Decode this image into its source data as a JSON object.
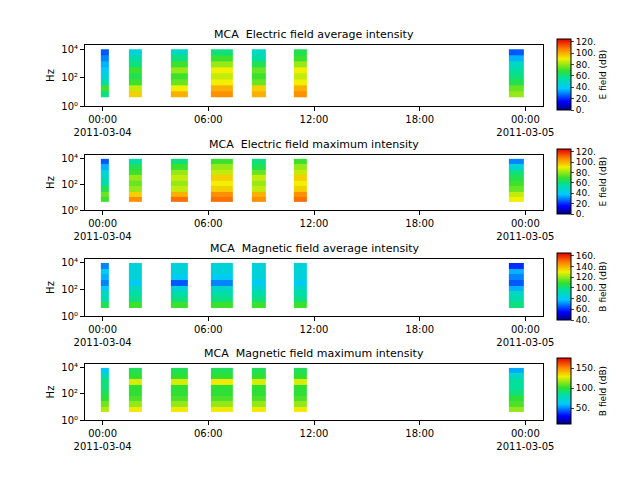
{
  "chart_data": [
    {
      "type": "heatmap",
      "title": "MCA  Electric field average intensity",
      "ylabel": "Hz",
      "log": "y",
      "xlim": [
        "2011-03-03 23:00",
        "2011-03-05 01:00"
      ],
      "xticks": [
        {
          "value": "2011-03-04 00:00",
          "label": "00:00\n2011-03-04"
        },
        {
          "value": "2011-03-04 06:00",
          "label": "06:00"
        },
        {
          "value": "2011-03-04 12:00",
          "label": "12:00"
        },
        {
          "value": "2011-03-04 18:00",
          "label": "18:00"
        },
        {
          "value": "2011-03-05 00:00",
          "label": "00:00\n2011-03-05"
        }
      ],
      "ylim": [
        1,
        20000
      ],
      "yticks": [
        {
          "value": 1,
          "label": "10⁰"
        },
        {
          "value": 100,
          "label": "10²"
        },
        {
          "value": 10000,
          "label": "10⁴"
        }
      ],
      "x_bins": [
        "2011-03-03 23:54",
        "2011-03-04 00:20",
        "2011-03-04 01:28",
        "2011-03-04 02:13",
        "2011-03-04 03:54",
        "2011-03-04 04:52",
        "2011-03-04 06:07",
        "2011-03-04 07:22",
        "2011-03-04 08:29",
        "2011-03-04 09:17",
        "2011-03-04 10:52",
        "2011-03-04 11:36",
        "2011-03-04 23:02",
        "2011-03-04 23:56"
      ],
      "y_bins": [
        4,
        11,
        28,
        75,
        200,
        530,
        1400,
        3800,
        10000
      ],
      "z": [
        [
          60,
          null,
          95,
          null,
          100,
          null,
          105,
          null,
          100,
          null,
          105,
          null,
          80
        ],
        [
          70,
          null,
          85,
          null,
          90,
          null,
          100,
          null,
          95,
          null,
          100,
          null,
          75
        ],
        [
          55,
          null,
          70,
          null,
          75,
          null,
          90,
          null,
          75,
          null,
          90,
          null,
          65
        ],
        [
          45,
          null,
          65,
          null,
          70,
          null,
          85,
          null,
          70,
          null,
          85,
          null,
          60
        ],
        [
          40,
          null,
          70,
          null,
          80,
          null,
          90,
          null,
          75,
          null,
          90,
          null,
          55
        ],
        [
          35,
          null,
          60,
          null,
          70,
          null,
          80,
          null,
          65,
          null,
          80,
          null,
          50
        ],
        [
          30,
          null,
          55,
          null,
          60,
          null,
          70,
          null,
          55,
          null,
          70,
          null,
          35
        ],
        [
          25,
          null,
          45,
          null,
          50,
          null,
          60,
          null,
          50,
          null,
          65,
          null,
          25
        ]
      ],
      "colorbar": {
        "label": "E field (dB)",
        "range": [
          0,
          125
        ],
        "ticks": [
          {
            "value": 0,
            "label": "0."
          },
          {
            "value": 20,
            "label": "20."
          },
          {
            "value": 40,
            "label": "40."
          },
          {
            "value": 60,
            "label": "60."
          },
          {
            "value": 80,
            "label": "80."
          },
          {
            "value": 100,
            "label": "100."
          },
          {
            "value": 120,
            "label": "120."
          }
        ]
      }
    },
    {
      "type": "heatmap",
      "title": "MCA  Electric field maximum intensity",
      "ylabel": "Hz",
      "log": "y",
      "xlim": [
        "2011-03-03 23:00",
        "2011-03-05 01:00"
      ],
      "xticks": [
        {
          "value": "2011-03-04 00:00",
          "label": "00:00\n2011-03-04"
        },
        {
          "value": "2011-03-04 06:00",
          "label": "06:00"
        },
        {
          "value": "2011-03-04 12:00",
          "label": "12:00"
        },
        {
          "value": "2011-03-04 18:00",
          "label": "18:00"
        },
        {
          "value": "2011-03-05 00:00",
          "label": "00:00\n2011-03-05"
        }
      ],
      "ylim": [
        1,
        20000
      ],
      "yticks": [
        {
          "value": 1,
          "label": "10⁰"
        },
        {
          "value": 100,
          "label": "10²"
        },
        {
          "value": 10000,
          "label": "10⁴"
        }
      ],
      "x_bins": [
        "2011-03-03 23:54",
        "2011-03-04 00:20",
        "2011-03-04 01:28",
        "2011-03-04 02:13",
        "2011-03-04 03:54",
        "2011-03-04 04:52",
        "2011-03-04 06:07",
        "2011-03-04 07:22",
        "2011-03-04 08:29",
        "2011-03-04 09:17",
        "2011-03-04 10:52",
        "2011-03-04 11:36",
        "2011-03-04 23:02",
        "2011-03-04 23:56"
      ],
      "y_bins": [
        4,
        11,
        28,
        75,
        200,
        530,
        1400,
        3800,
        10000
      ],
      "z": [
        [
          70,
          null,
          105,
          null,
          110,
          null,
          110,
          null,
          105,
          null,
          110,
          null,
          90
        ],
        [
          75,
          null,
          95,
          null,
          100,
          null,
          105,
          null,
          100,
          null,
          105,
          null,
          85
        ],
        [
          65,
          null,
          80,
          null,
          85,
          null,
          95,
          null,
          85,
          null,
          95,
          null,
          75
        ],
        [
          55,
          null,
          75,
          null,
          80,
          null,
          90,
          null,
          80,
          null,
          90,
          null,
          70
        ],
        [
          50,
          null,
          80,
          null,
          85,
          null,
          95,
          null,
          85,
          null,
          95,
          null,
          65
        ],
        [
          45,
          null,
          70,
          null,
          80,
          null,
          85,
          null,
          75,
          null,
          85,
          null,
          60
        ],
        [
          35,
          null,
          65,
          null,
          70,
          null,
          80,
          null,
          65,
          null,
          80,
          null,
          45
        ],
        [
          25,
          null,
          55,
          null,
          60,
          null,
          70,
          null,
          60,
          null,
          70,
          null,
          30
        ]
      ],
      "colorbar": {
        "label": "E field (dB)",
        "range": [
          0,
          125
        ],
        "ticks": [
          {
            "value": 0,
            "label": "0."
          },
          {
            "value": 20,
            "label": "20."
          },
          {
            "value": 40,
            "label": "40."
          },
          {
            "value": 60,
            "label": "60."
          },
          {
            "value": 80,
            "label": "80."
          },
          {
            "value": 100,
            "label": "100."
          },
          {
            "value": 120,
            "label": "120."
          }
        ]
      }
    },
    {
      "type": "heatmap",
      "title": "MCA  Magnetic field average intensity",
      "ylabel": "Hz",
      "log": "y",
      "xlim": [
        "2011-03-03 23:00",
        "2011-03-05 01:00"
      ],
      "xticks": [
        {
          "value": "2011-03-04 00:00",
          "label": "00:00\n2011-03-04"
        },
        {
          "value": "2011-03-04 06:00",
          "label": "06:00"
        },
        {
          "value": "2011-03-04 12:00",
          "label": "12:00"
        },
        {
          "value": "2011-03-04 18:00",
          "label": "18:00"
        },
        {
          "value": "2011-03-05 00:00",
          "label": "00:00\n2011-03-05"
        }
      ],
      "ylim": [
        1,
        20000
      ],
      "yticks": [
        {
          "value": 1,
          "label": "10⁰"
        },
        {
          "value": 100,
          "label": "10²"
        },
        {
          "value": 10000,
          "label": "10⁴"
        }
      ],
      "x_bins": [
        "2011-03-03 23:54",
        "2011-03-04 00:20",
        "2011-03-04 01:28",
        "2011-03-04 02:13",
        "2011-03-04 03:54",
        "2011-03-04 04:52",
        "2011-03-04 06:07",
        "2011-03-04 07:22",
        "2011-03-04 08:29",
        "2011-03-04 09:17",
        "2011-03-04 10:52",
        "2011-03-04 11:36",
        "2011-03-04 23:02",
        "2011-03-04 23:56"
      ],
      "y_bins": [
        4,
        11,
        28,
        75,
        200,
        530,
        1400,
        3800,
        10000
      ],
      "z": [
        [
          105,
          null,
          110,
          null,
          110,
          null,
          110,
          null,
          110,
          null,
          110,
          null,
          100
        ],
        [
          95,
          null,
          100,
          null,
          100,
          null,
          100,
          null,
          100,
          null,
          100,
          null,
          95
        ],
        [
          90,
          null,
          95,
          null,
          95,
          null,
          95,
          null,
          95,
          null,
          95,
          null,
          90
        ],
        [
          80,
          null,
          90,
          null,
          85,
          null,
          88,
          null,
          88,
          null,
          90,
          null,
          75
        ],
        [
          70,
          null,
          80,
          null,
          65,
          null,
          70,
          null,
          80,
          null,
          80,
          null,
          65
        ],
        [
          75,
          null,
          85,
          null,
          80,
          null,
          80,
          null,
          85,
          null,
          85,
          null,
          70
        ],
        [
          80,
          null,
          85,
          null,
          85,
          null,
          85,
          null,
          85,
          null,
          85,
          null,
          75
        ],
        [
          70,
          null,
          85,
          null,
          85,
          null,
          85,
          null,
          85,
          null,
          85,
          null,
          60
        ]
      ],
      "colorbar": {
        "label": "B field (dB)",
        "range": [
          40,
          165
        ],
        "ticks": [
          {
            "value": 40,
            "label": "40."
          },
          {
            "value": 60,
            "label": "60."
          },
          {
            "value": 80,
            "label": "80."
          },
          {
            "value": 100,
            "label": "100."
          },
          {
            "value": 120,
            "label": "120."
          },
          {
            "value": 140,
            "label": "140."
          },
          {
            "value": 160,
            "label": "160."
          }
        ]
      }
    },
    {
      "type": "heatmap",
      "title": "MCA  Magnetic field maximum intensity",
      "ylabel": "Hz",
      "log": "y",
      "xlim": [
        "2011-03-03 23:00",
        "2011-03-05 01:00"
      ],
      "xticks": [
        {
          "value": "2011-03-04 00:00",
          "label": "00:00\n2011-03-04"
        },
        {
          "value": "2011-03-04 06:00",
          "label": "06:00"
        },
        {
          "value": "2011-03-04 12:00",
          "label": "12:00"
        },
        {
          "value": "2011-03-04 18:00",
          "label": "18:00"
        },
        {
          "value": "2011-03-05 00:00",
          "label": "00:00\n2011-03-05"
        }
      ],
      "ylim": [
        1,
        20000
      ],
      "yticks": [
        {
          "value": 1,
          "label": "10⁰"
        },
        {
          "value": 100,
          "label": "10²"
        },
        {
          "value": 10000,
          "label": "10⁴"
        }
      ],
      "x_bins": [
        "2011-03-03 23:54",
        "2011-03-04 00:20",
        "2011-03-04 01:28",
        "2011-03-04 02:13",
        "2011-03-04 03:54",
        "2011-03-04 04:52",
        "2011-03-04 06:07",
        "2011-03-04 07:22",
        "2011-03-04 08:29",
        "2011-03-04 09:17",
        "2011-03-04 10:52",
        "2011-03-04 11:36",
        "2011-03-04 23:02",
        "2011-03-04 23:56"
      ],
      "y_bins": [
        4,
        11,
        28,
        75,
        200,
        530,
        1400,
        3800,
        10000
      ],
      "z": [
        [
          120,
          null,
          130,
          null,
          130,
          null,
          130,
          null,
          130,
          null,
          130,
          null,
          115
        ],
        [
          110,
          null,
          115,
          null,
          115,
          null,
          115,
          null,
          115,
          null,
          115,
          null,
          105
        ],
        [
          100,
          null,
          105,
          null,
          105,
          null,
          105,
          null,
          105,
          null,
          105,
          null,
          100
        ],
        [
          95,
          null,
          100,
          null,
          100,
          null,
          100,
          null,
          100,
          null,
          100,
          null,
          90
        ],
        [
          90,
          null,
          100,
          null,
          100,
          null,
          100,
          null,
          100,
          null,
          100,
          null,
          85
        ],
        [
          90,
          null,
          125,
          null,
          125,
          null,
          130,
          null,
          125,
          null,
          125,
          null,
          85
        ],
        [
          80,
          null,
          100,
          null,
          100,
          null,
          100,
          null,
          100,
          null,
          100,
          null,
          75
        ],
        [
          60,
          null,
          95,
          null,
          95,
          null,
          95,
          null,
          95,
          null,
          95,
          null,
          55
        ]
      ],
      "colorbar": {
        "label": "B field (dB)",
        "range": [
          10,
          175
        ],
        "ticks": [
          {
            "value": 50,
            "label": "50."
          },
          {
            "value": 100,
            "label": "100."
          },
          {
            "value": 150,
            "label": "150."
          }
        ]
      }
    }
  ]
}
